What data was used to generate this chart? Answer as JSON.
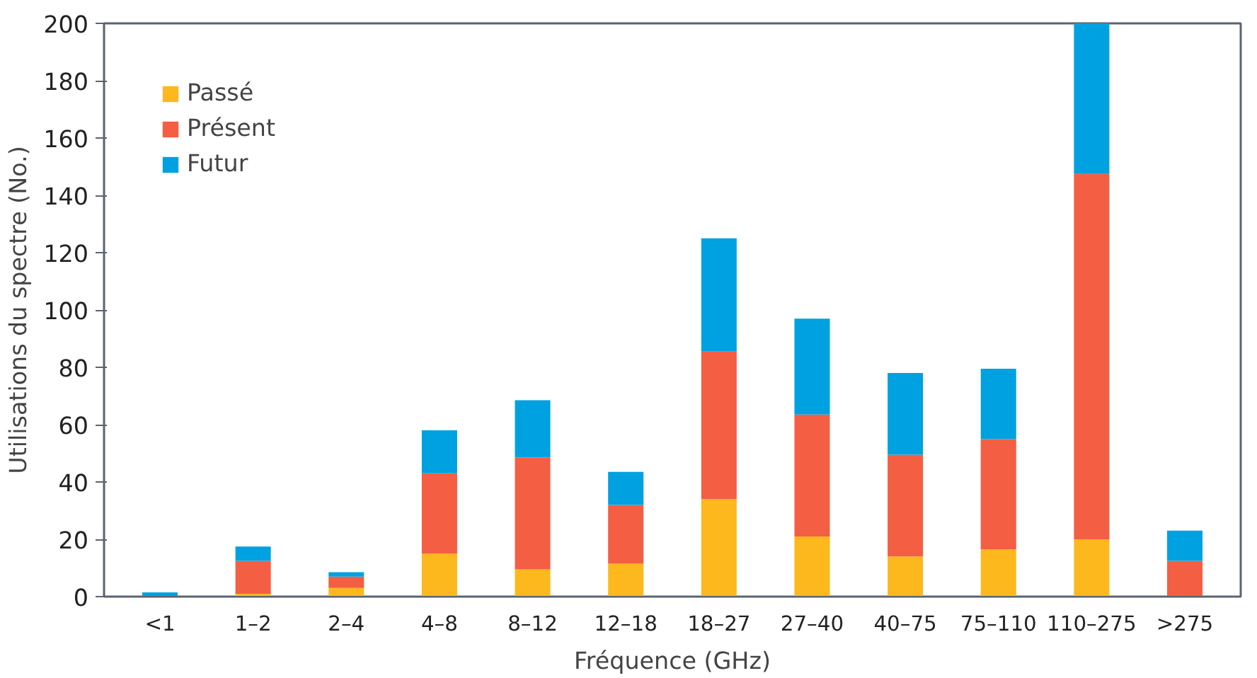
{
  "chart_data": {
    "type": "bar",
    "stacked": true,
    "xlabel": "Fréquence (GHz)",
    "ylabel": "Utilisations du spectre (No.)",
    "categories": [
      "<1",
      "1–2",
      "2–4",
      "4–8",
      "8–12",
      "12–18",
      "18–27",
      "27–40",
      "40–75",
      "75–110",
      "110–275",
      ">275"
    ],
    "series": [
      {
        "name": "Passé",
        "color": "#fdb81e",
        "values": [
          0,
          1,
          3,
          15,
          9.5,
          11.5,
          34,
          21,
          14,
          16.5,
          20,
          0
        ]
      },
      {
        "name": "Présent",
        "color": "#f45e43",
        "values": [
          0,
          11.5,
          4,
          28,
          39,
          20.5,
          51.5,
          42.5,
          35.5,
          38.5,
          127.5,
          12.5
        ]
      },
      {
        "name": "Futur",
        "color": "#00a1e0",
        "values": [
          1.5,
          5,
          1.5,
          15,
          20,
          11.5,
          39.5,
          33.5,
          28.5,
          24.5,
          52.5,
          10.5
        ]
      }
    ],
    "ylim": [
      0,
      200
    ],
    "yticks": [
      0,
      20,
      40,
      60,
      80,
      100,
      120,
      140,
      160,
      180,
      200
    ],
    "grid": false,
    "legend": "top left"
  }
}
